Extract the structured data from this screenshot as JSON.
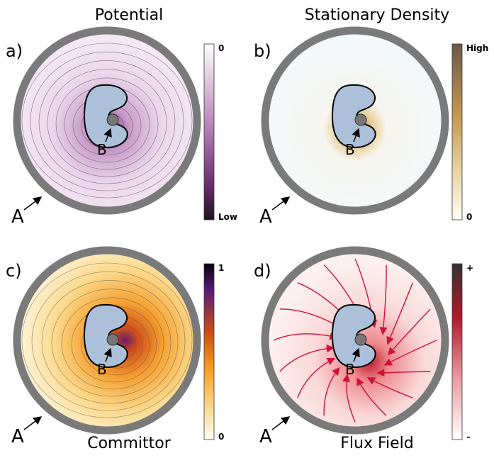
{
  "panels": [
    {
      "letter": "a)",
      "title": "Potential",
      "colorbar_top": "0",
      "colorbar_bottom": "Low",
      "point_a": "A",
      "point_b": "B"
    },
    {
      "letter": "b)",
      "title": "Stationary Density",
      "colorbar_top": "High",
      "colorbar_bottom": "0",
      "point_a": "A",
      "point_b": "B"
    },
    {
      "letter": "c)",
      "title": "Committor",
      "colorbar_top": "1",
      "colorbar_bottom": "0",
      "point_a": "A",
      "point_b": "B"
    },
    {
      "letter": "d)",
      "title": "Flux Field",
      "colorbar_top": "+",
      "colorbar_bottom": "–",
      "point_a": "A",
      "point_b": "B"
    }
  ]
}
